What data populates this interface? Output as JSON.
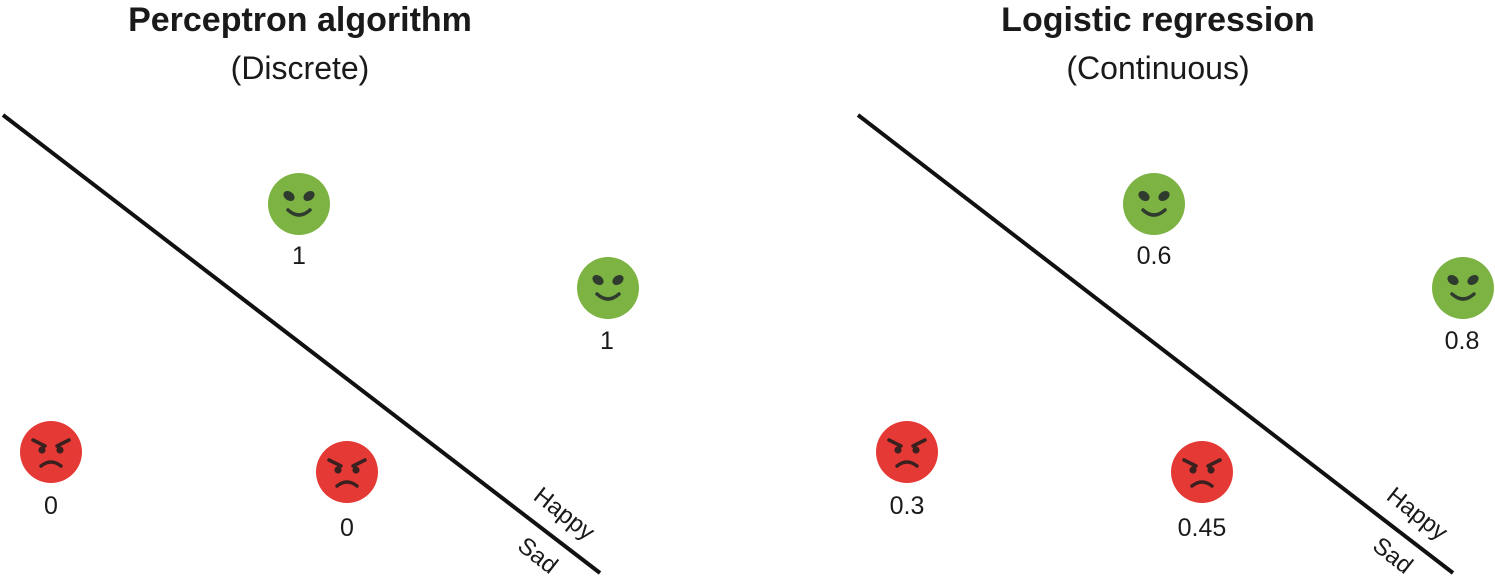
{
  "left": {
    "title": "Perceptron algorithm",
    "subtitle": "(Discrete)",
    "side_happy": "Happy",
    "side_sad": "Sad",
    "points": [
      {
        "face": "happy",
        "value": "1"
      },
      {
        "face": "happy",
        "value": "1"
      },
      {
        "face": "angry",
        "value": "0"
      },
      {
        "face": "angry",
        "value": "0"
      }
    ]
  },
  "right": {
    "title": "Logistic regression",
    "subtitle": "(Continuous)",
    "side_happy": "Happy",
    "side_sad": "Sad",
    "points": [
      {
        "face": "happy",
        "value": "0.6"
      },
      {
        "face": "happy",
        "value": "0.8"
      },
      {
        "face": "angry",
        "value": "0.3"
      },
      {
        "face": "angry",
        "value": "0.45"
      }
    ]
  },
  "colors": {
    "happy_face": "#7cb342",
    "angry_face": "#e53935",
    "features": "#2e3b2e",
    "line": "#111111"
  },
  "icons": {
    "happy": "alien-smile-icon",
    "angry": "angry-face-icon"
  }
}
